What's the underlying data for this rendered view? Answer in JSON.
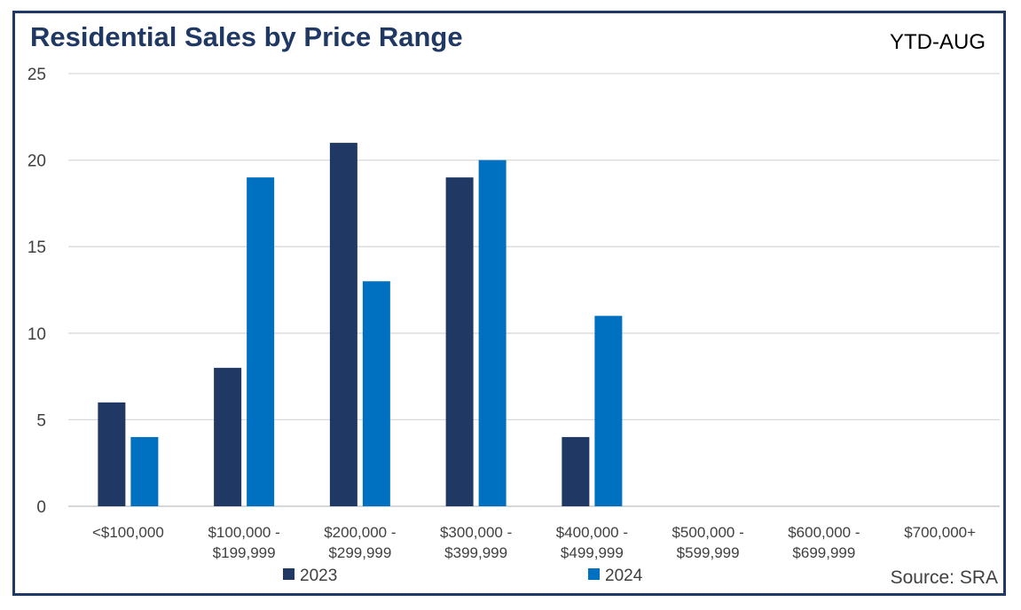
{
  "header": {
    "title": "Residential Sales by Price Range",
    "period": "YTD-AUG"
  },
  "footer": {
    "source": "Source: SRA"
  },
  "colors": {
    "frame": "#1f3864",
    "title": "#1f3864",
    "series_2023": "#203864",
    "series_2024": "#0070c0",
    "grid": "#d9d9d9"
  },
  "chart_data": {
    "type": "bar",
    "title": "Residential Sales by Price Range",
    "subtitle": "YTD-AUG",
    "categories": [
      [
        "<$100,000"
      ],
      [
        "$100,000 -",
        "$199,999"
      ],
      [
        "$200,000 -",
        "$299,999"
      ],
      [
        "$300,000 -",
        "$399,999"
      ],
      [
        "$400,000 -",
        "$499,999"
      ],
      [
        "$500,000 -",
        "$599,999"
      ],
      [
        "$600,000 -",
        "$699,999"
      ],
      [
        "$700,000+"
      ]
    ],
    "series": [
      {
        "name": "2023",
        "color": "#203864",
        "values": [
          6,
          8,
          21,
          19,
          4,
          0,
          0,
          0
        ]
      },
      {
        "name": "2024",
        "color": "#0070c0",
        "values": [
          4,
          19,
          13,
          20,
          11,
          0,
          0,
          0
        ]
      }
    ],
    "yticks": [
      0,
      5,
      10,
      15,
      20,
      25
    ],
    "ylim": [
      0,
      25
    ],
    "grid": true,
    "legend_position": "bottom",
    "source": "Source: SRA"
  }
}
